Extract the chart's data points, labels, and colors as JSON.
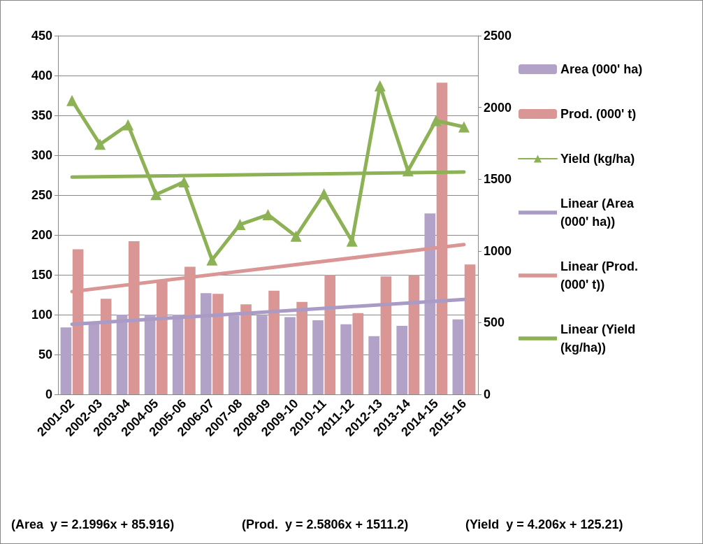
{
  "chart_data": {
    "type": "bar",
    "categories": [
      "2001-02",
      "2002-03",
      "2003-04",
      "2004-05",
      "2005-06",
      "2006-07",
      "2007-08",
      "2008-09",
      "2009-10",
      "2010-11",
      "2011-12",
      "2012-13",
      "2013-14",
      "2014-15",
      "2015-16"
    ],
    "series": [
      {
        "name": "Area (000' ha)",
        "color": "#b3a2c7",
        "values": [
          84,
          90,
          100,
          100,
          100,
          127,
          99,
          99,
          97,
          93,
          88,
          73,
          86,
          227,
          94
        ]
      },
      {
        "name": "Prod. (000' t)",
        "color": "#d99694",
        "values": [
          182,
          120,
          192,
          143,
          160,
          126,
          113,
          130,
          116,
          150,
          102,
          148,
          150,
          391,
          163
        ]
      },
      {
        "name": "Yield (kg/ha)",
        "type": "line",
        "axis": "y2",
        "marker": "triangle",
        "color": "#8db255",
        "values": [
          2048,
          1743,
          1879,
          1393,
          1481,
          937,
          1184,
          1252,
          1102,
          1398,
          1068,
          2150,
          1558,
          1908,
          1864
        ]
      },
      {
        "name": "Linear (Area (000' ha))",
        "type": "line",
        "marker": "none",
        "color": "#a99bc6",
        "values": [
          88,
          null,
          null,
          null,
          null,
          null,
          null,
          null,
          null,
          null,
          null,
          null,
          null,
          null,
          119
        ]
      },
      {
        "name": "Linear (Prod. (000' t))",
        "type": "line",
        "marker": "none",
        "color": "#d99694",
        "values": [
          129,
          null,
          null,
          null,
          null,
          null,
          null,
          null,
          null,
          null,
          null,
          null,
          null,
          null,
          188
        ]
      },
      {
        "name": "Linear (Yield (kg/ha))",
        "type": "line",
        "axis": "y2",
        "marker": "none",
        "color": "#8db255",
        "values": [
          1514,
          null,
          null,
          null,
          null,
          null,
          null,
          null,
          null,
          null,
          null,
          null,
          null,
          null,
          1550
        ]
      }
    ],
    "ylim": [
      0,
      450
    ],
    "yticks": [
      0,
      50,
      100,
      150,
      200,
      250,
      300,
      350,
      400,
      450
    ],
    "y2lim": [
      0,
      2500
    ],
    "y2ticks": [
      0,
      500,
      1000,
      1500,
      2000,
      2500
    ],
    "grid": "y",
    "legend": "right",
    "annotations": [
      "(Area  y = 2.1996x + 85.916)",
      "(Prod.  y = 2.5806x + 1511.2)",
      "(Yield  y = 4.206x + 125.21)"
    ]
  }
}
